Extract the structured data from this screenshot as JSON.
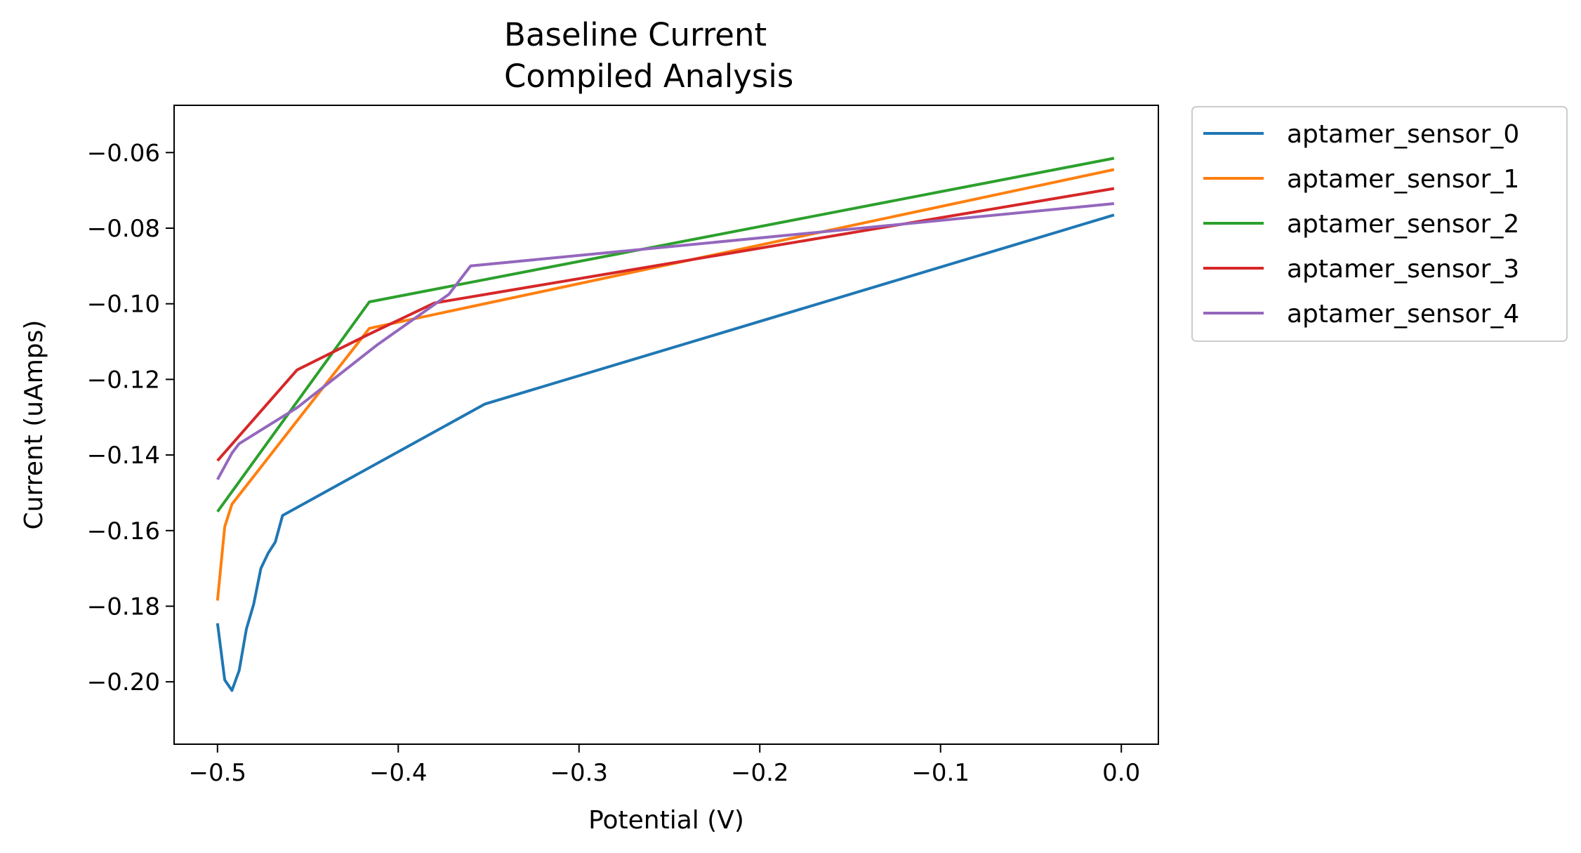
{
  "chart_data": {
    "type": "line",
    "title": [
      "Baseline Current",
      "Compiled Analysis"
    ],
    "xlabel": "Potential (V)",
    "ylabel": "Current (uAmps)",
    "xlim": [
      -0.524,
      0.0205
    ],
    "ylim": [
      -0.2165,
      -0.0475
    ],
    "xticks": [
      -0.5,
      -0.4,
      -0.3,
      -0.2,
      -0.1,
      0.0
    ],
    "xtick_labels": [
      "−0.5",
      "−0.4",
      "−0.3",
      "−0.2",
      "−0.1",
      "0.0"
    ],
    "yticks": [
      -0.06,
      -0.08,
      -0.1,
      -0.12,
      -0.14,
      -0.16,
      -0.18,
      -0.2
    ],
    "ytick_labels": [
      "−0.06",
      "−0.08",
      "−0.10",
      "−0.12",
      "−0.14",
      "−0.16",
      "−0.18",
      "−0.20"
    ],
    "grid": false,
    "legend_position": "outside-top-right",
    "series": [
      {
        "name": "aptamer_sensor_0",
        "color": "#1f77b4",
        "x": [
          -0.5,
          -0.496,
          -0.492,
          -0.488,
          -0.484,
          -0.48,
          -0.476,
          -0.472,
          -0.468,
          -0.464,
          -0.352,
          -0.004
        ],
        "y": [
          -0.1845,
          -0.1995,
          -0.2023,
          -0.197,
          -0.186,
          -0.1795,
          -0.17,
          -0.166,
          -0.163,
          -0.156,
          -0.1265,
          -0.0765
        ]
      },
      {
        "name": "aptamer_sensor_1",
        "color": "#ff7f0e",
        "x": [
          -0.5,
          -0.496,
          -0.492,
          -0.416,
          -0.004
        ],
        "y": [
          -0.1785,
          -0.159,
          -0.153,
          -0.1065,
          -0.0645
        ]
      },
      {
        "name": "aptamer_sensor_2",
        "color": "#2ca02c",
        "x": [
          -0.5,
          -0.416,
          -0.004
        ],
        "y": [
          -0.155,
          -0.0995,
          -0.0615
        ]
      },
      {
        "name": "aptamer_sensor_3",
        "color": "#d62728",
        "x": [
          -0.5,
          -0.456,
          -0.416,
          -0.38,
          -0.004
        ],
        "y": [
          -0.1415,
          -0.1175,
          -0.108,
          -0.0998,
          -0.0695
        ]
      },
      {
        "name": "aptamer_sensor_4",
        "color": "#9467bd",
        "x": [
          -0.5,
          -0.496,
          -0.492,
          -0.488,
          -0.456,
          -0.412,
          -0.372,
          -0.36,
          -0.004
        ],
        "y": [
          -0.1465,
          -0.143,
          -0.1395,
          -0.137,
          -0.1275,
          -0.111,
          -0.0975,
          -0.09,
          -0.0735
        ]
      }
    ]
  }
}
